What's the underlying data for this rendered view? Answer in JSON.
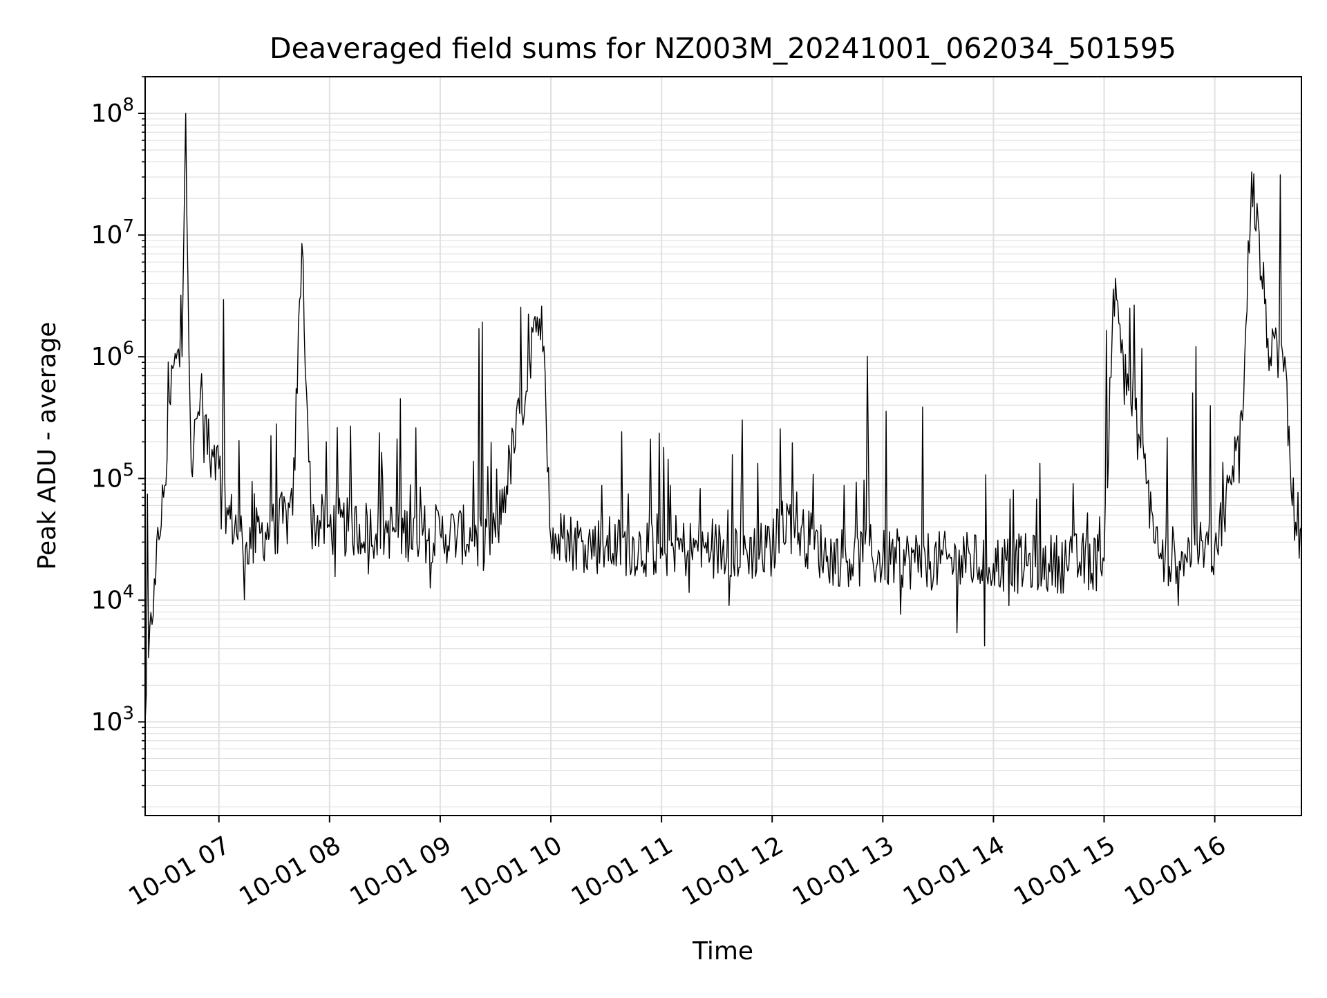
{
  "chart_data": {
    "type": "line",
    "title": "Deaveraged field sums for NZ003M_20241001_062034_501595",
    "xlabel": "Time",
    "ylabel": "Peak ADU - average",
    "x_axis": {
      "kind": "datetime",
      "start": "2024-10-01 06:20",
      "end": "2024-10-01 16:47",
      "ticks": [
        "2024-10-01 07:00",
        "2024-10-01 08:00",
        "2024-10-01 09:00",
        "2024-10-01 10:00",
        "2024-10-01 11:00",
        "2024-10-01 12:00",
        "2024-10-01 13:00",
        "2024-10-01 14:00",
        "2024-10-01 15:00",
        "2024-10-01 16:00"
      ],
      "tick_labels": [
        "10-01 07",
        "10-01 08",
        "10-01 09",
        "10-01 10",
        "10-01 11",
        "10-01 12",
        "10-01 13",
        "10-01 14",
        "10-01 15",
        "10-01 16"
      ]
    },
    "y_axis": {
      "scale": "log",
      "ylim": [
        170,
        200000000
      ],
      "ticks": [
        1000,
        10000,
        100000,
        1000000,
        10000000,
        100000000
      ],
      "tick_base": "10",
      "tick_exponents": [
        "3",
        "4",
        "5",
        "6",
        "7",
        "8"
      ]
    },
    "grid": true,
    "line_color": "#000000",
    "grid_color": "#e0e0e0",
    "series": [
      {
        "x": [
          "2024-10-01 06:20",
          "2024-10-01 06:25",
          "2024-10-01 06:30",
          "2024-10-01 06:35",
          "2024-10-01 06:40",
          "2024-10-01 06:42",
          "2024-10-01 06:45",
          "2024-10-01 06:50",
          "2024-10-01 06:55",
          "2024-10-01 07:00",
          "2024-10-01 07:05",
          "2024-10-01 07:15",
          "2024-10-01 07:30",
          "2024-10-01 07:40",
          "2024-10-01 07:45",
          "2024-10-01 07:50",
          "2024-10-01 08:00",
          "2024-10-01 08:30",
          "2024-10-01 09:00",
          "2024-10-01 09:30",
          "2024-10-01 09:55",
          "2024-10-01 10:00",
          "2024-10-01 10:30",
          "2024-10-01 11:00",
          "2024-10-01 11:30",
          "2024-10-01 12:00",
          "2024-10-01 12:05",
          "2024-10-01 12:30",
          "2024-10-01 13:00",
          "2024-10-01 13:30",
          "2024-10-01 14:00",
          "2024-10-01 14:30",
          "2024-10-01 15:00",
          "2024-10-01 15:05",
          "2024-10-01 15:30",
          "2024-10-01 16:00",
          "2024-10-01 16:05",
          "2024-10-01 16:15",
          "2024-10-01 16:20",
          "2024-10-01 16:30",
          "2024-10-01 16:38",
          "2024-10-01 16:42",
          "2024-10-01 16:47"
        ],
        "values": [
          1000,
          15000,
          70000,
          800000,
          1000000,
          100000000,
          120000,
          500000,
          150000,
          120000,
          50000,
          30000,
          40000,
          50000,
          8500000,
          45000,
          40000,
          38000,
          35000,
          33000,
          2600000,
          32000,
          28000,
          27000,
          26000,
          25000,
          50000,
          23000,
          22000,
          21000,
          20000,
          20000,
          21000,
          3600000,
          22000,
          28000,
          50000,
          300000,
          33000000,
          1000000,
          1000000,
          60000,
          40000
        ]
      }
    ]
  }
}
